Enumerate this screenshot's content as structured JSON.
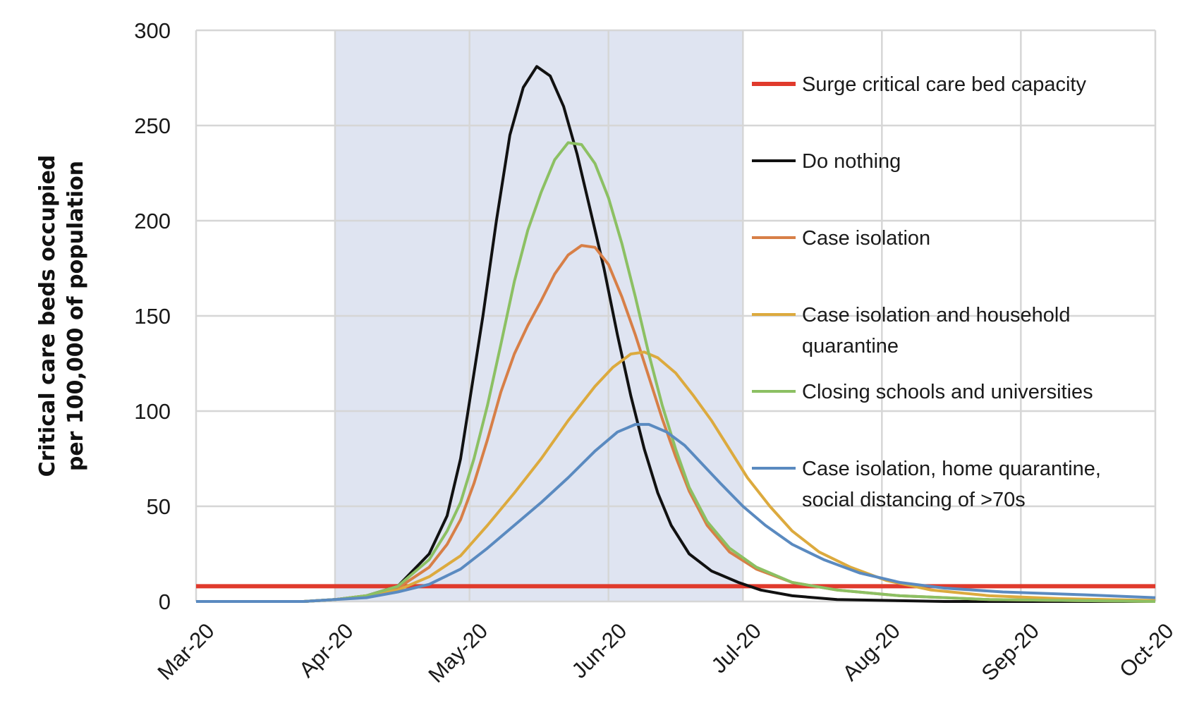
{
  "chart_data": {
    "type": "line",
    "title": "",
    "xlabel": "",
    "ylabel_lines": [
      "Critical care beds occupied",
      "per 100,000 of population"
    ],
    "x_ticks": [
      "Mar-20",
      "Apr-20",
      "May-20",
      "Jun-20",
      "Jul-20",
      "Aug-20",
      "Sep-20",
      "Oct-20"
    ],
    "x_range": [
      "2020-03-01",
      "2020-10-01"
    ],
    "ylim": [
      0,
      300
    ],
    "y_ticks": [
      0,
      50,
      100,
      150,
      200,
      250,
      300
    ],
    "grid": true,
    "legend_position": "right",
    "shaded_period": {
      "start": "2020-04-01",
      "end": "2020-07-01",
      "color": "#dfe4f1"
    },
    "reference_lines": [
      {
        "name": "Surge critical care bed capacity",
        "value": 8,
        "color": "#e03a2c"
      }
    ],
    "series": [
      {
        "name": "Do nothing",
        "color": "#111111",
        "points": [
          [
            "2020-03-01",
            0
          ],
          [
            "2020-03-25",
            0
          ],
          [
            "2020-04-01",
            1
          ],
          [
            "2020-04-08",
            3
          ],
          [
            "2020-04-15",
            8
          ],
          [
            "2020-04-22",
            25
          ],
          [
            "2020-04-26",
            45
          ],
          [
            "2020-04-29",
            75
          ],
          [
            "2020-05-01",
            105
          ],
          [
            "2020-05-04",
            150
          ],
          [
            "2020-05-07",
            200
          ],
          [
            "2020-05-10",
            245
          ],
          [
            "2020-05-13",
            270
          ],
          [
            "2020-05-16",
            281
          ],
          [
            "2020-05-19",
            276
          ],
          [
            "2020-05-22",
            260
          ],
          [
            "2020-05-25",
            235
          ],
          [
            "2020-05-28",
            205
          ],
          [
            "2020-05-31",
            175
          ],
          [
            "2020-06-03",
            140
          ],
          [
            "2020-06-06",
            108
          ],
          [
            "2020-06-09",
            80
          ],
          [
            "2020-06-12",
            57
          ],
          [
            "2020-06-15",
            40
          ],
          [
            "2020-06-19",
            25
          ],
          [
            "2020-06-24",
            16
          ],
          [
            "2020-06-30",
            10
          ],
          [
            "2020-07-05",
            6
          ],
          [
            "2020-07-12",
            3
          ],
          [
            "2020-07-22",
            1
          ],
          [
            "2020-08-15",
            0
          ],
          [
            "2020-10-01",
            0
          ]
        ]
      },
      {
        "name": "Case isolation",
        "color": "#d77f47",
        "points": [
          [
            "2020-03-01",
            0
          ],
          [
            "2020-03-25",
            0
          ],
          [
            "2020-04-01",
            1
          ],
          [
            "2020-04-08",
            3
          ],
          [
            "2020-04-15",
            7
          ],
          [
            "2020-04-22",
            18
          ],
          [
            "2020-04-26",
            30
          ],
          [
            "2020-04-29",
            43
          ],
          [
            "2020-05-02",
            62
          ],
          [
            "2020-05-05",
            85
          ],
          [
            "2020-05-08",
            110
          ],
          [
            "2020-05-11",
            130
          ],
          [
            "2020-05-14",
            145
          ],
          [
            "2020-05-17",
            158
          ],
          [
            "2020-05-20",
            172
          ],
          [
            "2020-05-23",
            182
          ],
          [
            "2020-05-26",
            187
          ],
          [
            "2020-05-29",
            186
          ],
          [
            "2020-06-01",
            177
          ],
          [
            "2020-06-04",
            160
          ],
          [
            "2020-06-07",
            140
          ],
          [
            "2020-06-10",
            118
          ],
          [
            "2020-06-13",
            96
          ],
          [
            "2020-06-16",
            76
          ],
          [
            "2020-06-19",
            58
          ],
          [
            "2020-06-23",
            40
          ],
          [
            "2020-06-28",
            26
          ],
          [
            "2020-07-04",
            17
          ],
          [
            "2020-07-12",
            10
          ],
          [
            "2020-07-22",
            6
          ],
          [
            "2020-08-05",
            3
          ],
          [
            "2020-08-25",
            1
          ],
          [
            "2020-10-01",
            0
          ]
        ]
      },
      {
        "name": "Case isolation and household quarantine",
        "color": "#dcaa3e",
        "points": [
          [
            "2020-03-01",
            0
          ],
          [
            "2020-03-25",
            0
          ],
          [
            "2020-04-01",
            1
          ],
          [
            "2020-04-08",
            3
          ],
          [
            "2020-04-15",
            6
          ],
          [
            "2020-04-22",
            13
          ],
          [
            "2020-04-29",
            24
          ],
          [
            "2020-05-05",
            40
          ],
          [
            "2020-05-11",
            57
          ],
          [
            "2020-05-17",
            75
          ],
          [
            "2020-05-23",
            95
          ],
          [
            "2020-05-29",
            113
          ],
          [
            "2020-06-02",
            123
          ],
          [
            "2020-06-06",
            130
          ],
          [
            "2020-06-09",
            131
          ],
          [
            "2020-06-12",
            128
          ],
          [
            "2020-06-16",
            120
          ],
          [
            "2020-06-20",
            108
          ],
          [
            "2020-06-24",
            95
          ],
          [
            "2020-06-28",
            80
          ],
          [
            "2020-07-02",
            65
          ],
          [
            "2020-07-07",
            50
          ],
          [
            "2020-07-12",
            37
          ],
          [
            "2020-07-18",
            26
          ],
          [
            "2020-07-25",
            18
          ],
          [
            "2020-08-02",
            11
          ],
          [
            "2020-08-12",
            6
          ],
          [
            "2020-08-25",
            3
          ],
          [
            "2020-09-10",
            1.5
          ],
          [
            "2020-10-01",
            0.5
          ]
        ]
      },
      {
        "name": "Closing schools and universities",
        "color": "#8cc063",
        "points": [
          [
            "2020-03-01",
            0
          ],
          [
            "2020-03-25",
            0
          ],
          [
            "2020-04-01",
            1
          ],
          [
            "2020-04-08",
            3
          ],
          [
            "2020-04-15",
            8
          ],
          [
            "2020-04-22",
            22
          ],
          [
            "2020-04-26",
            37
          ],
          [
            "2020-04-29",
            52
          ],
          [
            "2020-05-02",
            75
          ],
          [
            "2020-05-05",
            103
          ],
          [
            "2020-05-08",
            135
          ],
          [
            "2020-05-11",
            168
          ],
          [
            "2020-05-14",
            195
          ],
          [
            "2020-05-17",
            215
          ],
          [
            "2020-05-20",
            232
          ],
          [
            "2020-05-23",
            241
          ],
          [
            "2020-05-26",
            240
          ],
          [
            "2020-05-29",
            230
          ],
          [
            "2020-06-01",
            212
          ],
          [
            "2020-06-04",
            188
          ],
          [
            "2020-06-07",
            160
          ],
          [
            "2020-06-10",
            130
          ],
          [
            "2020-06-13",
            103
          ],
          [
            "2020-06-16",
            80
          ],
          [
            "2020-06-19",
            60
          ],
          [
            "2020-06-23",
            42
          ],
          [
            "2020-06-28",
            28
          ],
          [
            "2020-07-04",
            18
          ],
          [
            "2020-07-12",
            10
          ],
          [
            "2020-07-22",
            6
          ],
          [
            "2020-08-05",
            3
          ],
          [
            "2020-08-25",
            1
          ],
          [
            "2020-10-01",
            0
          ]
        ]
      },
      {
        "name": "Case isolation, home quarantine, social distancing of >70s",
        "color": "#5a8ac0",
        "points": [
          [
            "2020-03-01",
            0
          ],
          [
            "2020-03-25",
            0
          ],
          [
            "2020-04-01",
            1
          ],
          [
            "2020-04-08",
            2
          ],
          [
            "2020-04-15",
            5
          ],
          [
            "2020-04-22",
            9
          ],
          [
            "2020-04-29",
            17
          ],
          [
            "2020-05-05",
            28
          ],
          [
            "2020-05-11",
            40
          ],
          [
            "2020-05-17",
            52
          ],
          [
            "2020-05-23",
            65
          ],
          [
            "2020-05-29",
            79
          ],
          [
            "2020-06-03",
            89
          ],
          [
            "2020-06-07",
            93
          ],
          [
            "2020-06-10",
            93
          ],
          [
            "2020-06-14",
            89
          ],
          [
            "2020-06-18",
            82
          ],
          [
            "2020-06-22",
            72
          ],
          [
            "2020-06-26",
            62
          ],
          [
            "2020-07-01",
            50
          ],
          [
            "2020-07-06",
            40
          ],
          [
            "2020-07-12",
            30
          ],
          [
            "2020-07-19",
            22
          ],
          [
            "2020-07-27",
            15
          ],
          [
            "2020-08-05",
            10
          ],
          [
            "2020-08-15",
            7
          ],
          [
            "2020-08-28",
            5
          ],
          [
            "2020-09-15",
            3.5
          ],
          [
            "2020-10-01",
            2
          ]
        ]
      }
    ],
    "legend": [
      {
        "lines": [
          "Surge critical care bed capacity"
        ],
        "color": "#e03a2c"
      },
      {
        "lines": [
          "Do nothing"
        ],
        "color": "#111111"
      },
      {
        "lines": [
          "Case isolation"
        ],
        "color": "#d77f47"
      },
      {
        "lines": [
          "Case isolation and household",
          "quarantine"
        ],
        "color": "#dcaa3e"
      },
      {
        "lines": [
          "Closing schools and universities"
        ],
        "color": "#8cc063"
      },
      {
        "lines": [
          "Case isolation, home quarantine,",
          "social distancing of >70s"
        ],
        "color": "#5a8ac0"
      }
    ]
  }
}
